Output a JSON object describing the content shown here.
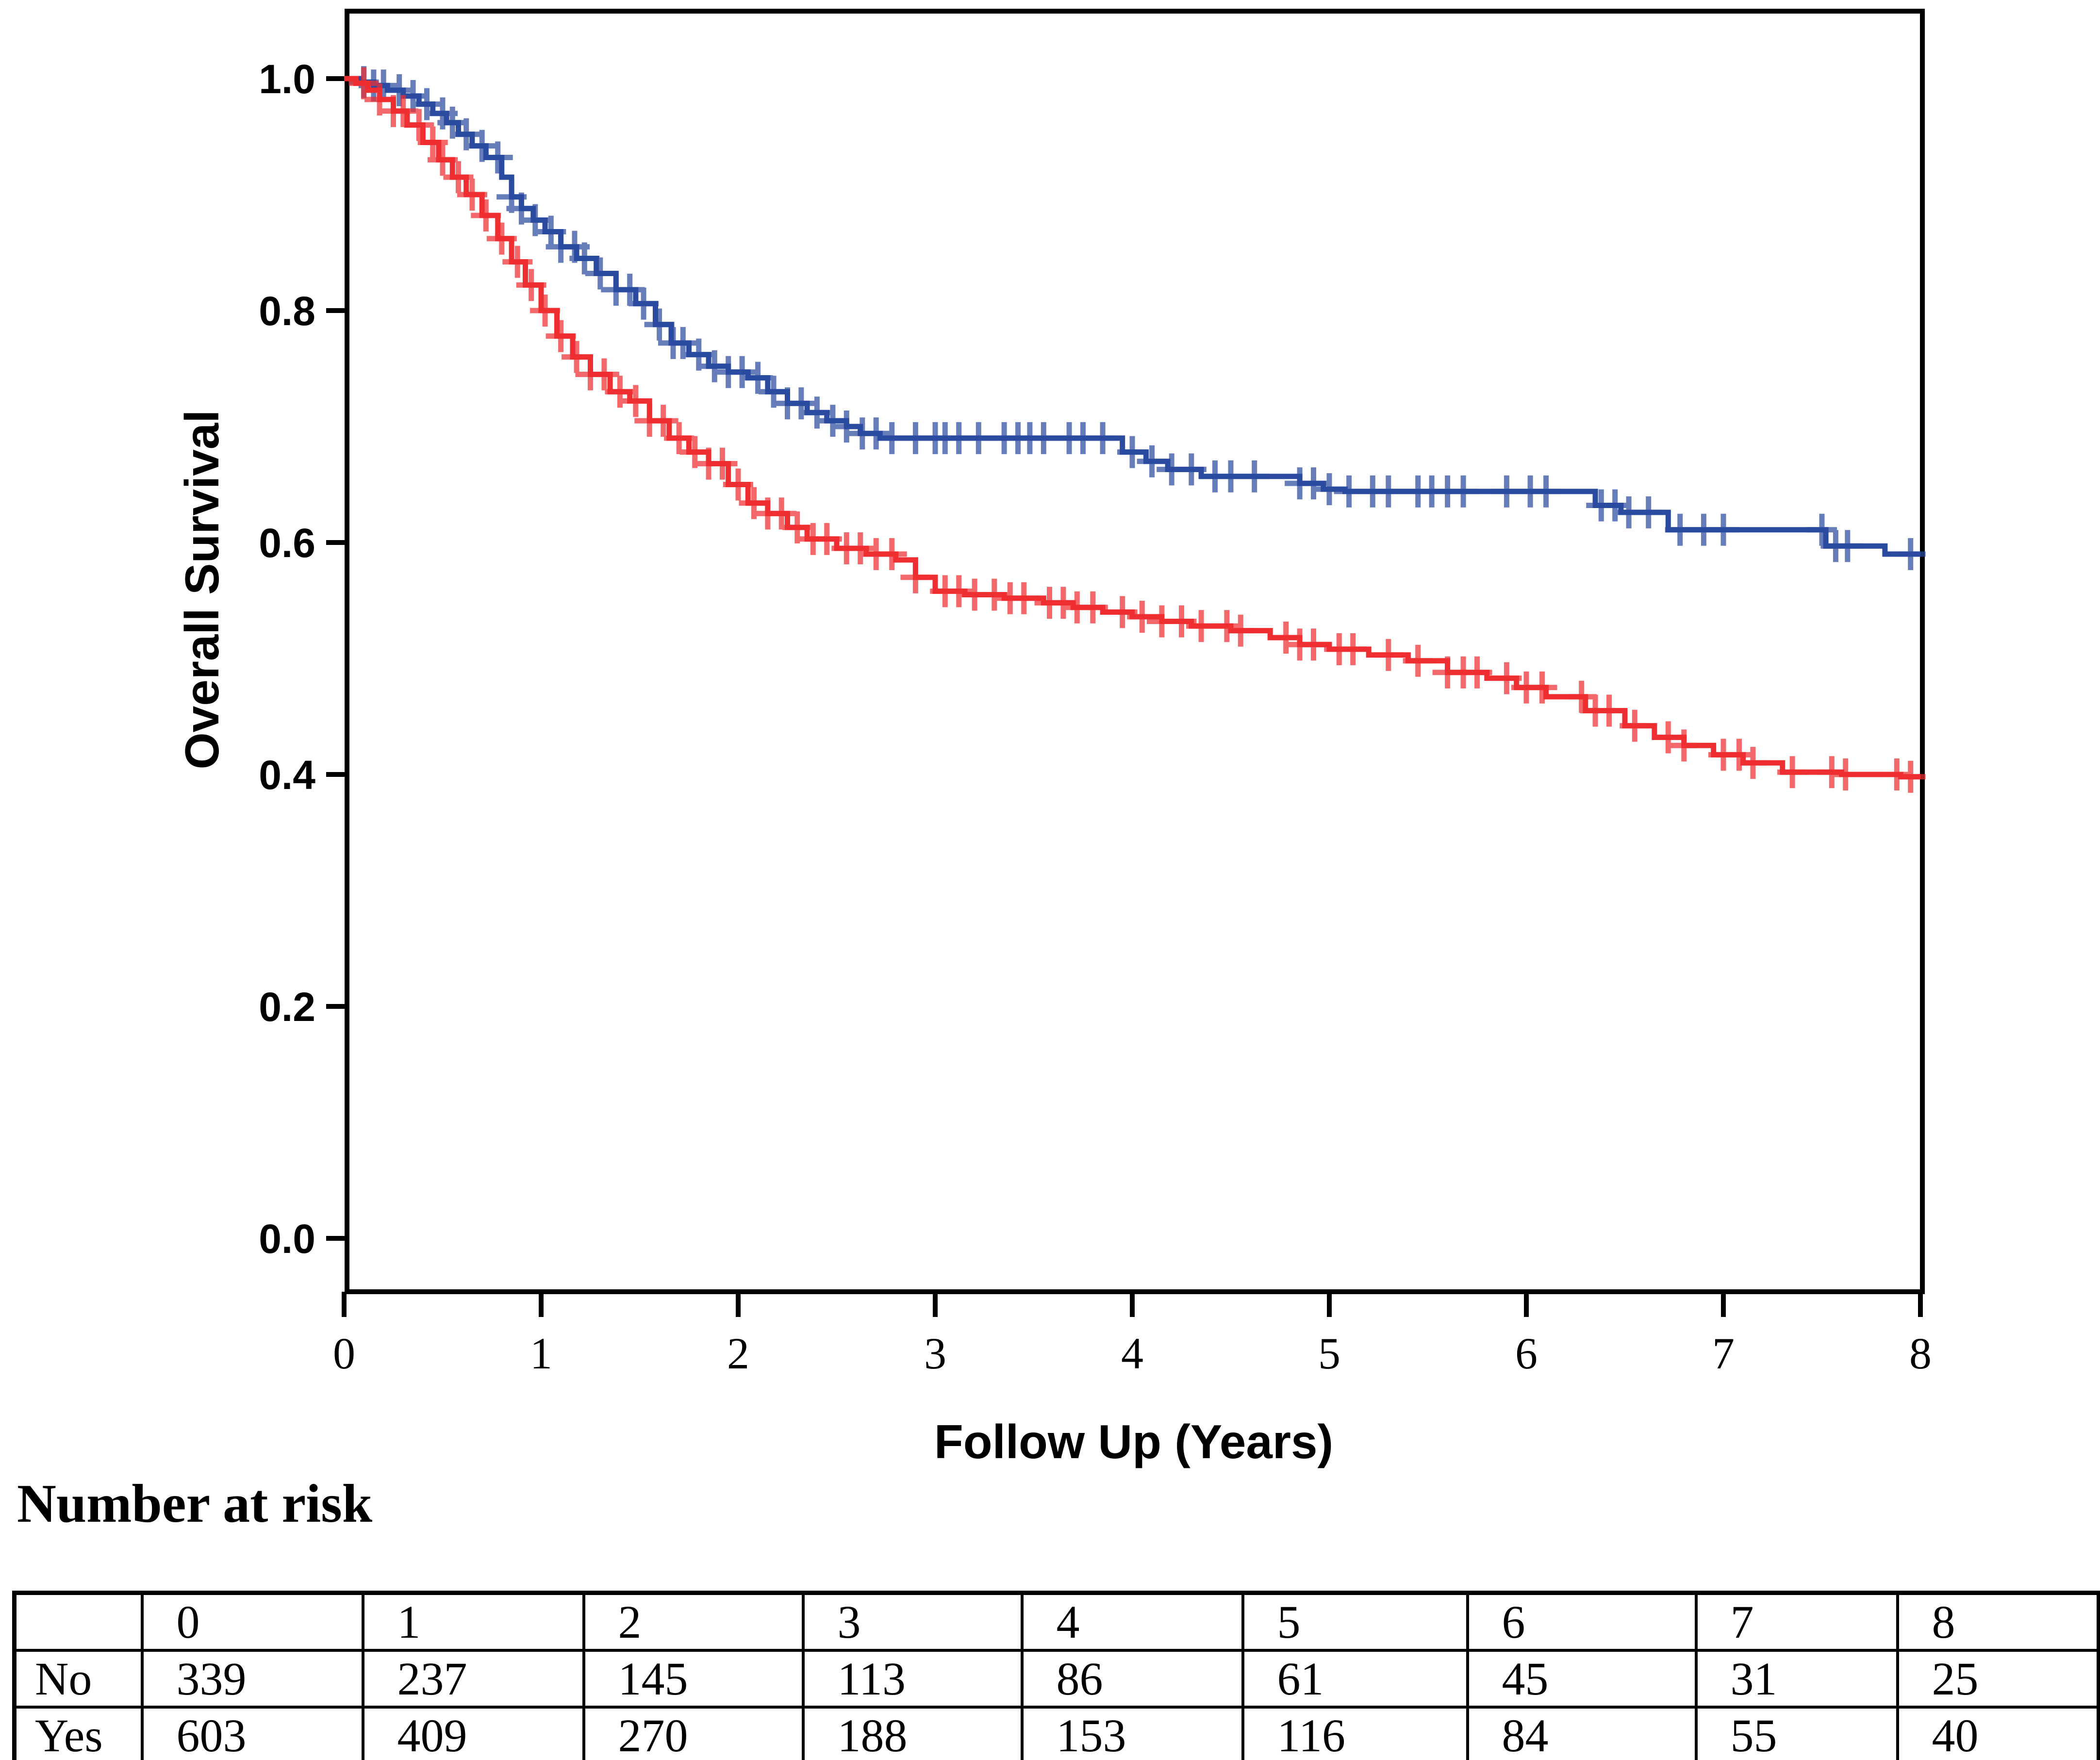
{
  "chart_data": {
    "type": "line",
    "subtype": "kaplan-meier-step",
    "title": "",
    "xlabel": "Follow Up (Years)",
    "ylabel": "Overall Survival",
    "xlim": [
      0,
      8
    ],
    "ylim": [
      0.0,
      1.0
    ],
    "xticks": [
      "0",
      "1",
      "2",
      "3",
      "4",
      "5",
      "6",
      "7",
      "8"
    ],
    "yticks": [
      "1.0",
      "0.8",
      "0.6",
      "0.4",
      "0.2",
      "0.0"
    ],
    "grid": false,
    "legend": false,
    "series": [
      {
        "name": "No",
        "color": "#2B4BA0",
        "steps": [
          [
            0,
            1.0
          ],
          [
            0.08,
            0.997
          ],
          [
            0.15,
            0.994
          ],
          [
            0.22,
            0.99
          ],
          [
            0.3,
            0.985
          ],
          [
            0.38,
            0.978
          ],
          [
            0.45,
            0.97
          ],
          [
            0.52,
            0.962
          ],
          [
            0.58,
            0.952
          ],
          [
            0.65,
            0.942
          ],
          [
            0.72,
            0.932
          ],
          [
            0.8,
            0.915
          ],
          [
            0.85,
            0.898
          ],
          [
            0.9,
            0.888
          ],
          [
            0.96,
            0.878
          ],
          [
            1.02,
            0.868
          ],
          [
            1.1,
            0.855
          ],
          [
            1.18,
            0.845
          ],
          [
            1.28,
            0.832
          ],
          [
            1.38,
            0.818
          ],
          [
            1.48,
            0.806
          ],
          [
            1.58,
            0.788
          ],
          [
            1.66,
            0.772
          ],
          [
            1.75,
            0.762
          ],
          [
            1.85,
            0.752
          ],
          [
            1.95,
            0.747
          ],
          [
            2.05,
            0.742
          ],
          [
            2.15,
            0.73
          ],
          [
            2.25,
            0.72
          ],
          [
            2.35,
            0.712
          ],
          [
            2.45,
            0.705
          ],
          [
            2.55,
            0.7
          ],
          [
            2.62,
            0.694
          ],
          [
            2.72,
            0.69
          ],
          [
            3.95,
            0.678
          ],
          [
            4.07,
            0.67
          ],
          [
            4.18,
            0.663
          ],
          [
            4.35,
            0.657
          ],
          [
            4.85,
            0.651
          ],
          [
            4.97,
            0.646
          ],
          [
            5.08,
            0.644
          ],
          [
            6.35,
            0.632
          ],
          [
            6.48,
            0.626
          ],
          [
            6.72,
            0.611
          ],
          [
            7.52,
            0.597
          ],
          [
            7.82,
            0.59
          ],
          [
            8,
            0.59
          ]
        ],
        "censor_times": [
          0.1,
          0.15,
          0.2,
          0.28,
          0.35,
          0.42,
          0.5,
          0.55,
          0.62,
          0.7,
          0.78,
          0.85,
          0.9,
          0.97,
          1.05,
          1.1,
          1.17,
          1.22,
          1.3,
          1.38,
          1.45,
          1.52,
          1.6,
          1.67,
          1.72,
          1.8,
          1.88,
          1.95,
          2.02,
          2.1,
          2.18,
          2.25,
          2.32,
          2.4,
          2.48,
          2.55,
          2.63,
          2.7,
          2.78,
          2.9,
          3.0,
          3.05,
          3.12,
          3.22,
          3.35,
          3.42,
          3.48,
          3.55,
          3.68,
          3.75,
          3.85,
          4.0,
          4.1,
          4.2,
          4.3,
          4.42,
          4.5,
          4.62,
          4.85,
          4.92,
          5.0,
          5.1,
          5.22,
          5.3,
          5.45,
          5.52,
          5.6,
          5.68,
          5.9,
          6.02,
          6.1,
          6.38,
          6.45,
          6.52,
          6.62,
          6.78,
          6.9,
          7.0,
          7.5,
          7.57,
          7.63,
          7.95
        ]
      },
      {
        "name": "Yes",
        "color": "#EE2E31",
        "steps": [
          [
            0,
            1.0
          ],
          [
            0.06,
            0.996
          ],
          [
            0.12,
            0.99
          ],
          [
            0.18,
            0.982
          ],
          [
            0.25,
            0.972
          ],
          [
            0.32,
            0.96
          ],
          [
            0.4,
            0.945
          ],
          [
            0.48,
            0.93
          ],
          [
            0.55,
            0.915
          ],
          [
            0.62,
            0.9
          ],
          [
            0.7,
            0.882
          ],
          [
            0.78,
            0.862
          ],
          [
            0.85,
            0.842
          ],
          [
            0.92,
            0.822
          ],
          [
            1.0,
            0.8
          ],
          [
            1.08,
            0.778
          ],
          [
            1.16,
            0.76
          ],
          [
            1.25,
            0.745
          ],
          [
            1.35,
            0.73
          ],
          [
            1.45,
            0.722
          ],
          [
            1.55,
            0.705
          ],
          [
            1.65,
            0.69
          ],
          [
            1.75,
            0.678
          ],
          [
            1.85,
            0.668
          ],
          [
            1.95,
            0.65
          ],
          [
            2.05,
            0.634
          ],
          [
            2.15,
            0.625
          ],
          [
            2.25,
            0.613
          ],
          [
            2.35,
            0.603
          ],
          [
            2.5,
            0.595
          ],
          [
            2.65,
            0.59
          ],
          [
            2.8,
            0.585
          ],
          [
            2.9,
            0.57
          ],
          [
            3.0,
            0.558
          ],
          [
            3.15,
            0.555
          ],
          [
            3.35,
            0.552
          ],
          [
            3.55,
            0.548
          ],
          [
            3.7,
            0.544
          ],
          [
            3.85,
            0.54
          ],
          [
            4.0,
            0.536
          ],
          [
            4.15,
            0.532
          ],
          [
            4.3,
            0.528
          ],
          [
            4.5,
            0.524
          ],
          [
            4.7,
            0.518
          ],
          [
            4.85,
            0.512
          ],
          [
            5.0,
            0.508
          ],
          [
            5.2,
            0.503
          ],
          [
            5.4,
            0.498
          ],
          [
            5.6,
            0.488
          ],
          [
            5.8,
            0.483
          ],
          [
            5.95,
            0.475
          ],
          [
            6.1,
            0.467
          ],
          [
            6.3,
            0.455
          ],
          [
            6.5,
            0.442
          ],
          [
            6.65,
            0.432
          ],
          [
            6.8,
            0.425
          ],
          [
            6.95,
            0.417
          ],
          [
            7.1,
            0.41
          ],
          [
            7.3,
            0.402
          ],
          [
            7.6,
            0.4
          ],
          [
            7.9,
            0.398
          ],
          [
            8,
            0.398
          ]
        ],
        "censor_times": [
          0.1,
          0.18,
          0.25,
          0.3,
          0.38,
          0.45,
          0.5,
          0.58,
          0.65,
          0.72,
          0.8,
          0.88,
          0.95,
          1.02,
          1.1,
          1.18,
          1.25,
          1.32,
          1.4,
          1.48,
          1.55,
          1.62,
          1.7,
          1.78,
          1.85,
          1.92,
          2.0,
          2.08,
          2.15,
          2.22,
          2.3,
          2.38,
          2.45,
          2.55,
          2.62,
          2.7,
          2.78,
          2.9,
          3.05,
          3.12,
          3.2,
          3.3,
          3.38,
          3.45,
          3.58,
          3.65,
          3.72,
          3.8,
          3.95,
          4.05,
          4.15,
          4.25,
          4.35,
          4.48,
          4.55,
          4.78,
          4.85,
          4.92,
          5.05,
          5.12,
          5.3,
          5.45,
          5.6,
          5.68,
          5.75,
          5.9,
          6.0,
          6.08,
          6.28,
          6.35,
          6.42,
          6.55,
          6.72,
          6.8,
          7.0,
          7.08,
          7.15,
          7.35,
          7.55,
          7.62,
          7.88,
          7.95
        ]
      }
    ]
  },
  "risk_table": {
    "heading": "Number at risk",
    "columns": [
      "0",
      "1",
      "2",
      "3",
      "4",
      "5",
      "6",
      "7",
      "8"
    ],
    "rows": [
      {
        "label": "No",
        "values": [
          "339",
          "237",
          "145",
          "113",
          "86",
          "61",
          "45",
          "31",
          "25"
        ]
      },
      {
        "label": "Yes",
        "values": [
          "603",
          "409",
          "270",
          "188",
          "153",
          "116",
          "84",
          "55",
          "40"
        ]
      }
    ]
  }
}
